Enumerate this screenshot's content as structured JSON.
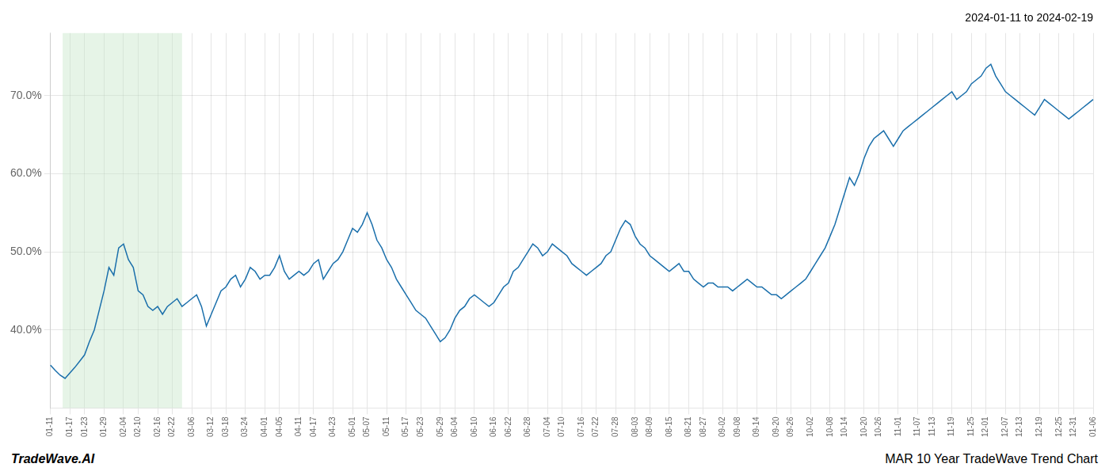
{
  "chart_data": {
    "type": "line",
    "title": "2024-01-11 to 2024-02-19",
    "annotations": [
      "TradeWave.AI",
      "MAR 10 Year TradeWave Trend Chart"
    ],
    "color": "#1a6fab",
    "grid": true,
    "highlight": {
      "start": "01-17",
      "end": "02-22",
      "color": "#c8e6c9"
    },
    "ylim": [
      30,
      78
    ],
    "yticks": [
      {
        "value": 40.0,
        "label": "40.0%"
      },
      {
        "value": 50.0,
        "label": "50.0%"
      },
      {
        "value": 60.0,
        "label": "60.0%"
      },
      {
        "value": 70.0,
        "label": "70.0%"
      }
    ],
    "categories": [
      "01-11",
      null,
      null,
      null,
      "01-17",
      null,
      null,
      "01-23",
      null,
      null,
      null,
      "01-29",
      null,
      null,
      null,
      "02-04",
      null,
      null,
      "02-10",
      null,
      null,
      null,
      "02-16",
      null,
      null,
      "02-22",
      null,
      null,
      null,
      "03-06",
      null,
      null,
      null,
      "03-12",
      null,
      null,
      "03-18",
      null,
      null,
      null,
      "03-24",
      null,
      null,
      null,
      "04-01",
      null,
      null,
      "04-05",
      null,
      null,
      null,
      "04-11",
      null,
      null,
      "04-17",
      null,
      null,
      null,
      "04-23",
      null,
      null,
      null,
      "05-01",
      null,
      null,
      "05-07",
      null,
      null,
      null,
      "05-11",
      null,
      null,
      null,
      "05-17",
      null,
      null,
      "05-23",
      null,
      null,
      null,
      "05-29",
      null,
      null,
      "06-04",
      null,
      null,
      null,
      "06-10",
      null,
      null,
      null,
      "06-16",
      null,
      null,
      "06-22",
      null,
      null,
      null,
      "06-28",
      null,
      null,
      null,
      "07-04",
      null,
      null,
      "07-10",
      null,
      null,
      null,
      "07-16",
      null,
      null,
      "07-22",
      null,
      null,
      null,
      "07-28",
      null,
      null,
      null,
      "08-03",
      null,
      null,
      "08-09",
      null,
      null,
      null,
      "08-15",
      null,
      null,
      null,
      "08-21",
      null,
      null,
      "08-27",
      null,
      null,
      null,
      "09-02",
      null,
      null,
      "09-08",
      null,
      null,
      null,
      "09-14",
      null,
      null,
      null,
      "09-20",
      null,
      null,
      "09-26",
      null,
      null,
      null,
      "10-02",
      null,
      null,
      null,
      "10-08",
      null,
      null,
      "10-14",
      null,
      null,
      null,
      "10-20",
      null,
      null,
      "10-26",
      null,
      null,
      null,
      "11-01",
      null,
      null,
      null,
      "11-07",
      null,
      null,
      "11-13",
      null,
      null,
      null,
      "11-19",
      null,
      null,
      null,
      "11-25",
      null,
      null,
      "12-01",
      null,
      null,
      null,
      "12-07",
      null,
      null,
      "12-13",
      null,
      null,
      null,
      "12-19",
      null,
      null,
      null,
      "12-25",
      null,
      null,
      "12-31",
      null,
      null,
      null,
      "01-06"
    ],
    "values": [
      35.5,
      34.8,
      34.2,
      33.8,
      34.5,
      35.2,
      36.0,
      36.8,
      38.5,
      40.0,
      42.5,
      45.0,
      48.0,
      47.0,
      50.5,
      51.0,
      49.0,
      48.0,
      45.0,
      44.5,
      43.0,
      42.5,
      43.0,
      42.0,
      43.0,
      43.5,
      44.0,
      43.0,
      43.5,
      44.0,
      44.5,
      43.0,
      40.5,
      42.0,
      43.5,
      45.0,
      45.5,
      46.5,
      47.0,
      45.5,
      46.5,
      48.0,
      47.5,
      46.5,
      47.0,
      47.0,
      48.0,
      49.5,
      47.5,
      46.5,
      47.0,
      47.5,
      47.0,
      47.5,
      48.5,
      49.0,
      46.5,
      47.5,
      48.5,
      49.0,
      50.0,
      51.5,
      53.0,
      52.5,
      53.5,
      55.0,
      53.5,
      51.5,
      50.5,
      49.0,
      48.0,
      46.5,
      45.5,
      44.5,
      43.5,
      42.5,
      42.0,
      41.5,
      40.5,
      39.5,
      38.5,
      39.0,
      40.0,
      41.5,
      42.5,
      43.0,
      44.0,
      44.5,
      44.0,
      43.5,
      43.0,
      43.5,
      44.5,
      45.5,
      46.0,
      47.5,
      48.0,
      49.0,
      50.0,
      51.0,
      50.5,
      49.5,
      50.0,
      51.0,
      50.5,
      50.0,
      49.5,
      48.5,
      48.0,
      47.5,
      47.0,
      47.5,
      48.0,
      48.5,
      49.5,
      50.0,
      51.5,
      53.0,
      54.0,
      53.5,
      52.0,
      51.0,
      50.5,
      49.5,
      49.0,
      48.5,
      48.0,
      47.5,
      48.0,
      48.5,
      47.5,
      47.5,
      46.5,
      46.0,
      45.5,
      46.0,
      46.0,
      45.5,
      45.5,
      45.5,
      45.0,
      45.5,
      46.0,
      46.5,
      46.0,
      45.5,
      45.5,
      45.0,
      44.5,
      44.5,
      44.0,
      44.5,
      45.0,
      45.5,
      46.0,
      46.5,
      47.5,
      48.5,
      49.5,
      50.5,
      52.0,
      53.5,
      55.5,
      57.5,
      59.5,
      58.5,
      60.0,
      62.0,
      63.5,
      64.5,
      65.0,
      65.5,
      64.5,
      63.5,
      64.5,
      65.5,
      66.0,
      66.5,
      67.0,
      67.5,
      68.0,
      68.5,
      69.0,
      69.5,
      70.0,
      70.5,
      69.5,
      70.0,
      70.5,
      71.5,
      72.0,
      72.5,
      73.5,
      74.0,
      72.5,
      71.5,
      70.5,
      70.0,
      69.5,
      69.0,
      68.5,
      68.0,
      67.5,
      68.5,
      69.5,
      69.0,
      68.5,
      68.0,
      67.5,
      67.0,
      67.5,
      68.0,
      68.5,
      69.0,
      69.5
    ]
  }
}
